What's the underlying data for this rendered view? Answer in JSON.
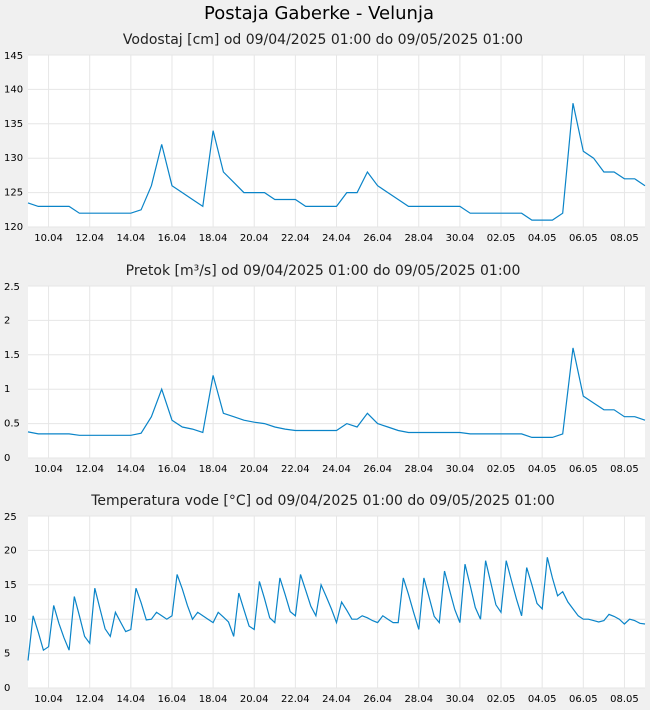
{
  "title": "Postaja Gaberke - Velunja",
  "chart_data": [
    {
      "type": "line",
      "title": "Vodostaj [cm] od 09/04/2025 01:00 do 09/05/2025 01:00",
      "color": "#0a84c8",
      "grid": true,
      "xlim": [
        0,
        30
      ],
      "ylim": [
        120,
        145
      ],
      "yticks": [
        120,
        125,
        130,
        135,
        140,
        145
      ],
      "xticks": [
        {
          "value": 1,
          "label": "10.04"
        },
        {
          "value": 3,
          "label": "12.04"
        },
        {
          "value": 5,
          "label": "14.04"
        },
        {
          "value": 7,
          "label": "16.04"
        },
        {
          "value": 9,
          "label": "18.04"
        },
        {
          "value": 11,
          "label": "20.04"
        },
        {
          "value": 13,
          "label": "22.04"
        },
        {
          "value": 15,
          "label": "24.04"
        },
        {
          "value": 17,
          "label": "26.04"
        },
        {
          "value": 19,
          "label": "28.04"
        },
        {
          "value": 21,
          "label": "30.04"
        },
        {
          "value": 23,
          "label": "02.05"
        },
        {
          "value": 25,
          "label": "04.05"
        },
        {
          "value": 27,
          "label": "06.05"
        },
        {
          "value": 29,
          "label": "08.05"
        }
      ],
      "x": [
        0,
        0.5,
        1,
        1.5,
        2,
        2.5,
        3,
        3.5,
        4,
        4.5,
        5,
        5.5,
        6,
        6.5,
        7,
        7.5,
        8,
        8.5,
        9,
        9.5,
        10,
        10.5,
        11,
        11.5,
        12,
        12.5,
        13,
        13.5,
        14,
        14.5,
        15,
        15.5,
        16,
        16.5,
        17,
        17.5,
        18,
        18.5,
        19,
        19.5,
        20,
        20.5,
        21,
        21.5,
        22,
        22.5,
        23,
        23.5,
        24,
        24.5,
        25,
        25.5,
        26,
        26.5,
        27,
        27.5,
        28,
        28.5,
        29,
        29.5,
        30
      ],
      "values": [
        123.5,
        123,
        123,
        123,
        123,
        122,
        122,
        122,
        122,
        122,
        122,
        122.5,
        126,
        132,
        126,
        125,
        124,
        123,
        134,
        128,
        126.5,
        125,
        125,
        125,
        124,
        124,
        124,
        123,
        123,
        123,
        123,
        125,
        125,
        128,
        126,
        125,
        124,
        123,
        123,
        123,
        123,
        123,
        123,
        122,
        122,
        122,
        122,
        122,
        122,
        121,
        121,
        121,
        122,
        138,
        131,
        130,
        128,
        128,
        127,
        127,
        126
      ]
    },
    {
      "type": "line",
      "title": "Pretok [m³/s] od 09/04/2025 01:00 do 09/05/2025 01:00",
      "color": "#0a84c8",
      "grid": true,
      "xlim": [
        0,
        30
      ],
      "ylim": [
        0,
        2.5
      ],
      "yticks": [
        0,
        0.5,
        1,
        1.5,
        2,
        2.5
      ],
      "xticks": [
        {
          "value": 1,
          "label": "10.04"
        },
        {
          "value": 3,
          "label": "12.04"
        },
        {
          "value": 5,
          "label": "14.04"
        },
        {
          "value": 7,
          "label": "16.04"
        },
        {
          "value": 9,
          "label": "18.04"
        },
        {
          "value": 11,
          "label": "20.04"
        },
        {
          "value": 13,
          "label": "22.04"
        },
        {
          "value": 15,
          "label": "24.04"
        },
        {
          "value": 17,
          "label": "26.04"
        },
        {
          "value": 19,
          "label": "28.04"
        },
        {
          "value": 21,
          "label": "30.04"
        },
        {
          "value": 23,
          "label": "02.05"
        },
        {
          "value": 25,
          "label": "04.05"
        },
        {
          "value": 27,
          "label": "06.05"
        },
        {
          "value": 29,
          "label": "08.05"
        }
      ],
      "x": [
        0,
        0.5,
        1,
        1.5,
        2,
        2.5,
        3,
        3.5,
        4,
        4.5,
        5,
        5.5,
        6,
        6.5,
        7,
        7.5,
        8,
        8.5,
        9,
        9.5,
        10,
        10.5,
        11,
        11.5,
        12,
        12.5,
        13,
        13.5,
        14,
        14.5,
        15,
        15.5,
        16,
        16.5,
        17,
        17.5,
        18,
        18.5,
        19,
        19.5,
        20,
        20.5,
        21,
        21.5,
        22,
        22.5,
        23,
        23.5,
        24,
        24.5,
        25,
        25.5,
        26,
        26.5,
        27,
        27.5,
        28,
        28.5,
        29,
        29.5,
        30
      ],
      "values": [
        0.38,
        0.35,
        0.35,
        0.35,
        0.35,
        0.33,
        0.33,
        0.33,
        0.33,
        0.33,
        0.33,
        0.36,
        0.6,
        1.0,
        0.55,
        0.45,
        0.42,
        0.37,
        1.2,
        0.65,
        0.6,
        0.55,
        0.52,
        0.5,
        0.45,
        0.42,
        0.4,
        0.4,
        0.4,
        0.4,
        0.4,
        0.5,
        0.45,
        0.65,
        0.5,
        0.45,
        0.4,
        0.37,
        0.37,
        0.37,
        0.37,
        0.37,
        0.37,
        0.35,
        0.35,
        0.35,
        0.35,
        0.35,
        0.35,
        0.3,
        0.3,
        0.3,
        0.35,
        1.6,
        0.9,
        0.8,
        0.7,
        0.7,
        0.6,
        0.6,
        0.55
      ]
    },
    {
      "type": "line",
      "title": "Temperatura vode [°C] od 09/04/2025 01:00 do 09/05/2025 01:00",
      "color": "#0a84c8",
      "grid": true,
      "xlim": [
        0,
        30
      ],
      "ylim": [
        0,
        25
      ],
      "yticks": [
        0,
        5,
        10,
        15,
        20,
        25
      ],
      "xticks": [
        {
          "value": 1,
          "label": "10.04"
        },
        {
          "value": 3,
          "label": "12.04"
        },
        {
          "value": 5,
          "label": "14.04"
        },
        {
          "value": 7,
          "label": "16.04"
        },
        {
          "value": 9,
          "label": "18.04"
        },
        {
          "value": 11,
          "label": "20.04"
        },
        {
          "value": 13,
          "label": "22.04"
        },
        {
          "value": 15,
          "label": "24.04"
        },
        {
          "value": 17,
          "label": "26.04"
        },
        {
          "value": 19,
          "label": "28.04"
        },
        {
          "value": 21,
          "label": "30.04"
        },
        {
          "value": 23,
          "label": "02.05"
        },
        {
          "value": 25,
          "label": "04.05"
        },
        {
          "value": 27,
          "label": "06.05"
        },
        {
          "value": 29,
          "label": "08.05"
        }
      ],
      "x": [
        0,
        0.25,
        0.5,
        0.75,
        1,
        1.25,
        1.5,
        1.75,
        2,
        2.25,
        2.5,
        2.75,
        3,
        3.25,
        3.5,
        3.75,
        4,
        4.25,
        4.5,
        4.75,
        5,
        5.25,
        5.5,
        5.75,
        6,
        6.25,
        6.5,
        6.75,
        7,
        7.25,
        7.5,
        7.75,
        8,
        8.25,
        8.5,
        8.75,
        9,
        9.25,
        9.5,
        9.75,
        10,
        10.25,
        10.5,
        10.75,
        11,
        11.25,
        11.5,
        11.75,
        12,
        12.25,
        12.5,
        12.75,
        13,
        13.25,
        13.5,
        13.75,
        14,
        14.25,
        14.5,
        14.75,
        15,
        15.25,
        15.5,
        15.75,
        16,
        16.25,
        16.5,
        16.75,
        17,
        17.25,
        17.5,
        17.75,
        18,
        18.25,
        18.5,
        18.75,
        19,
        19.25,
        19.5,
        19.75,
        20,
        20.25,
        20.5,
        20.75,
        21,
        21.25,
        21.5,
        21.75,
        22,
        22.25,
        22.5,
        22.75,
        23,
        23.25,
        23.5,
        23.75,
        24,
        24.25,
        24.5,
        24.75,
        25,
        25.25,
        25.5,
        25.75,
        26,
        26.25,
        26.5,
        26.75,
        27,
        27.25,
        27.5,
        27.75,
        28,
        28.25,
        28.5,
        28.75,
        29,
        29.25,
        29.5,
        29.75,
        30
      ],
      "values": [
        4,
        10.5,
        8.1,
        5.5,
        6,
        12,
        9.4,
        7.3,
        5.5,
        13.3,
        10.5,
        7.5,
        6.5,
        14.5,
        11.5,
        8.6,
        7.5,
        11,
        9.6,
        8.2,
        8.5,
        14.5,
        12.4,
        9.9,
        10,
        11,
        10.5,
        10,
        10.5,
        16.5,
        14.4,
        12,
        10,
        11,
        10.5,
        10,
        9.5,
        11,
        10.3,
        9.6,
        7.5,
        13.8,
        11.4,
        9,
        8.5,
        15.5,
        13,
        10.2,
        9.5,
        16,
        13.6,
        11.1,
        10.5,
        16.5,
        14.2,
        11.9,
        10.5,
        15,
        13.3,
        11.5,
        9.5,
        12.5,
        11.3,
        10,
        10,
        10.5,
        10.2,
        9.8,
        9.5,
        10.5,
        10,
        9.5,
        9.5,
        16,
        13.6,
        11,
        8.5,
        16,
        13.2,
        10.4,
        9.5,
        17,
        14.2,
        11.4,
        9.5,
        18,
        14.9,
        11.7,
        10,
        18.5,
        15.3,
        12.1,
        11,
        18.5,
        15.7,
        12.9,
        10.5,
        17.5,
        15,
        12.3,
        11.5,
        19,
        16,
        13.4,
        14,
        12.5,
        11.5,
        10.5,
        10,
        10,
        9.8,
        9.6,
        9.8,
        10.7,
        10.4,
        10,
        9.3,
        10,
        9.8,
        9.4,
        9.3
      ]
    }
  ]
}
